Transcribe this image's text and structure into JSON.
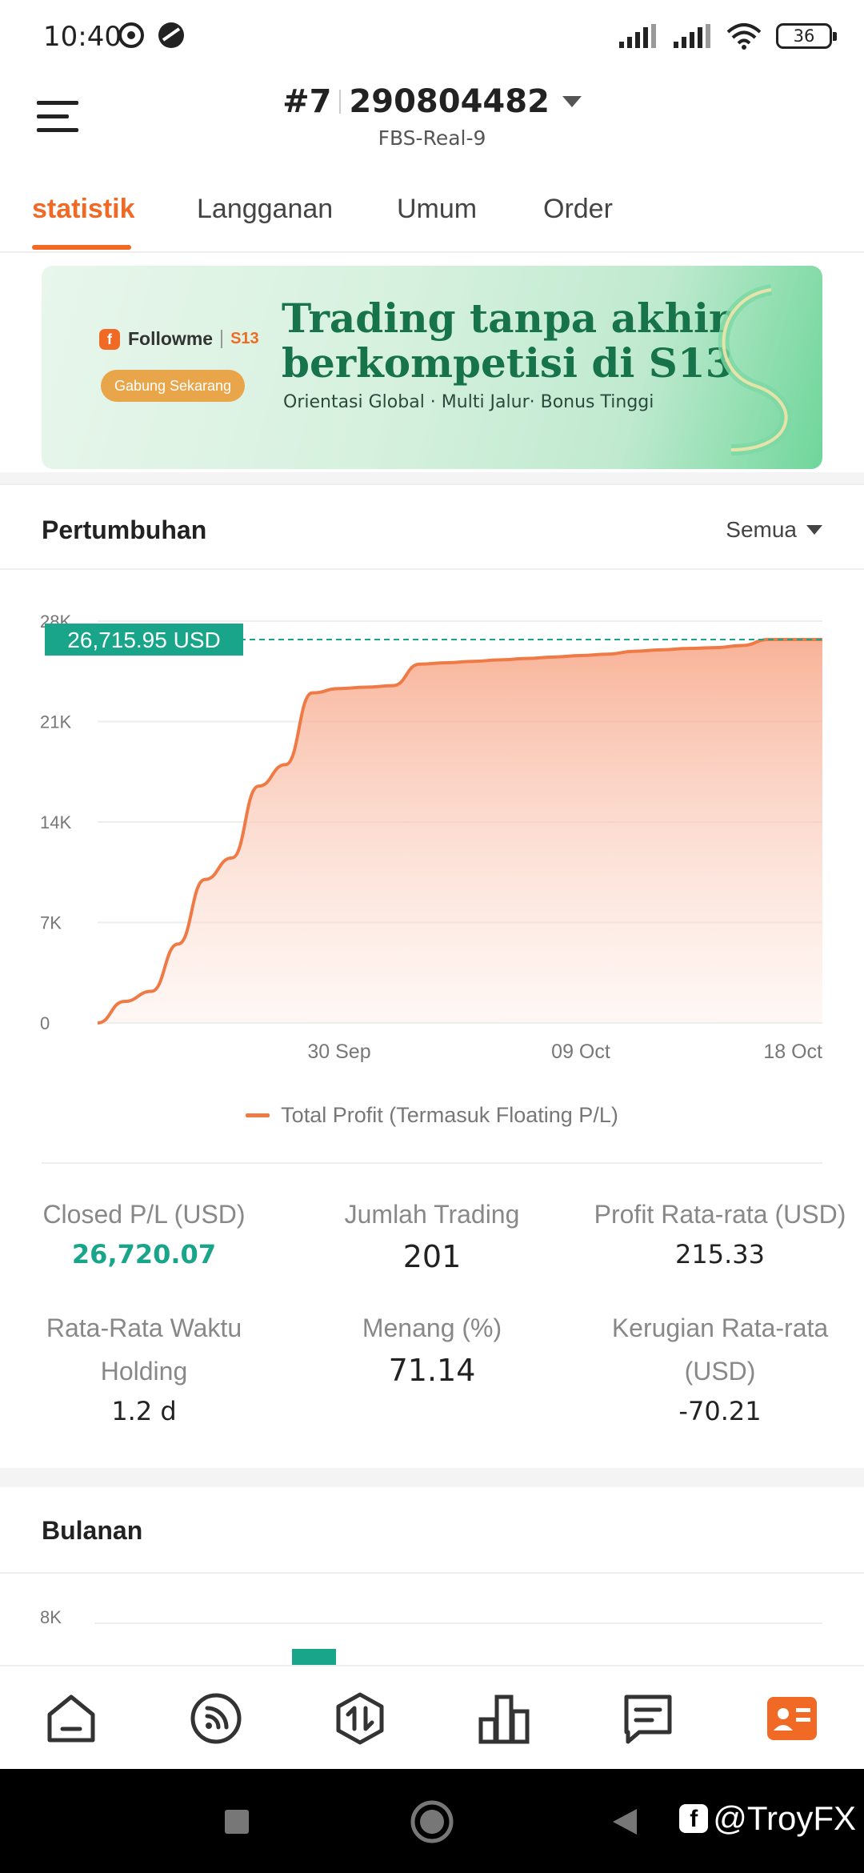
{
  "status_bar": {
    "time": "10:40",
    "battery": "36"
  },
  "header": {
    "account_rank": "#7",
    "account_number": "290804482",
    "server": "FBS-Real-9"
  },
  "tabs": [
    {
      "label": "statistik",
      "active": true
    },
    {
      "label": "Langganan",
      "active": false
    },
    {
      "label": "Umum",
      "active": false
    },
    {
      "label": "Order",
      "active": false
    }
  ],
  "banner": {
    "brand": "Followme",
    "brand_tag": "S13",
    "cta": "Gabung Sekarang",
    "title_line1": "Trading tanpa akhir",
    "title_line2": "berkompetisi di S13",
    "subtitle": "Orientasi Global · Multi Jalur· Bonus Tinggi"
  },
  "growth": {
    "title": "Pertumbuhan",
    "filter": "Semua",
    "current_value_label": "26,715.95 USD"
  },
  "chart_data": {
    "type": "area",
    "x_ticks": [
      "30 Sep",
      "09 Oct",
      "18 Oct"
    ],
    "y_ticks": [
      "0",
      "7K",
      "14K",
      "21K",
      "28K"
    ],
    "ylim": [
      0,
      28000
    ],
    "series": [
      {
        "name": "Total Profit (Termasuk Floating P/L)",
        "color": "#f07a45",
        "x": [
          "21 Sep",
          "22 Sep",
          "23 Sep",
          "24 Sep",
          "25 Sep",
          "26 Sep",
          "27 Sep",
          "28 Sep",
          "29 Sep",
          "30 Sep",
          "01 Oct",
          "02 Oct",
          "03 Oct",
          "04 Oct",
          "05 Oct",
          "06 Oct",
          "07 Oct",
          "08 Oct",
          "09 Oct",
          "10 Oct",
          "11 Oct",
          "12 Oct",
          "13 Oct",
          "14 Oct",
          "15 Oct",
          "16 Oct",
          "17 Oct",
          "18 Oct"
        ],
        "values": [
          0,
          1500,
          2200,
          5500,
          10000,
          11500,
          16500,
          18000,
          23000,
          23300,
          23400,
          23500,
          25000,
          25100,
          25200,
          25300,
          25400,
          25500,
          25600,
          25700,
          25900,
          26000,
          26100,
          26150,
          26300,
          26716,
          26716,
          26716
        ]
      }
    ],
    "marker_value": 26715.95
  },
  "stats": {
    "closed_pl_label": "Closed P/L (USD)",
    "closed_pl_value": "26,720.07",
    "jumlah_label": "Jumlah Trading",
    "jumlah_value": "201",
    "profit_avg_label": "Profit Rata-rata (USD)",
    "profit_avg_value": "215.33",
    "holding_label_1": "Rata-Rata Waktu",
    "holding_label_2": "Holding",
    "holding_value": "1.2 d",
    "menang_label": "Menang (%)",
    "menang_value": "71.14",
    "loss_avg_label_1": "Kerugian Rata-rata",
    "loss_avg_label_2": "(USD)",
    "loss_avg_value": "-70.21"
  },
  "monthly": {
    "title": "Bulanan",
    "y_tick_top": "8K"
  },
  "watermark": "@TroyFX",
  "colors": {
    "accent": "#f06a25",
    "green": "#19a58a",
    "line": "#f07a45"
  }
}
